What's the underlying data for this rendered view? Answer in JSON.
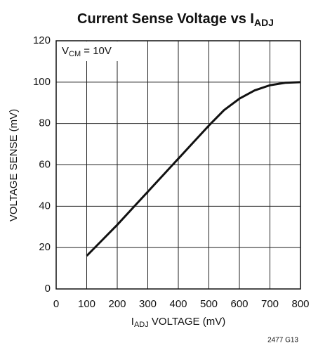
{
  "chart_data": {
    "type": "line",
    "title": {
      "text": "Current Sense Voltage vs I",
      "subscript": "ADJ"
    },
    "x_label": {
      "text": "I",
      "subscript": "ADJ",
      "rest": " VOLTAGE (mV)"
    },
    "y_label": "VOLTAGE SENSE (mV)",
    "annotation": {
      "text": "V",
      "subscript": "CM",
      "rest": " = 10V"
    },
    "footnote": "2477 G13",
    "x": [
      100,
      150,
      200,
      250,
      300,
      350,
      400,
      450,
      500,
      550,
      600,
      650,
      700,
      750,
      800
    ],
    "values": [
      16,
      23.5,
      31,
      39,
      47,
      55,
      63,
      71,
      79,
      86.5,
      92,
      96,
      98.5,
      99.7,
      100
    ],
    "color": "#111111",
    "xlim": [
      0,
      800
    ],
    "xticks": [
      0,
      100,
      200,
      300,
      400,
      500,
      600,
      700,
      800
    ],
    "ylim": [
      0,
      120
    ],
    "yticks": [
      0,
      20,
      40,
      60,
      80,
      100,
      120
    ],
    "grid": true
  }
}
